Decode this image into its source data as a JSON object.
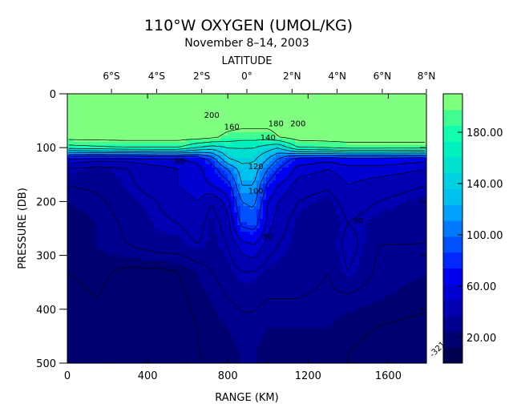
{
  "chart_data": {
    "type": "heatmap",
    "title": "110°W OXYGEN (UMOL/KG)",
    "subtitle": "November 8–14, 2003",
    "top_axis_label": "LATITUDE",
    "top_tick_labels": [
      "6°S",
      "4°S",
      "2°S",
      "0°",
      "2°N",
      "4°N",
      "6°N",
      "8°N"
    ],
    "top_tick_positions_km": [
      220,
      445,
      670,
      895,
      1120,
      1345,
      1570,
      1790
    ],
    "xlabel": "RANGE (KM)",
    "ylabel": "PRESSURE (DB)",
    "x_ticks": [
      0,
      400,
      800,
      1200,
      1600
    ],
    "y_ticks": [
      0,
      100,
      200,
      300,
      400,
      500
    ],
    "xlim": [
      0,
      1790
    ],
    "ylim": [
      500,
      0
    ],
    "colorbar": {
      "range": [
        0,
        210
      ],
      "tick_values": [
        20,
        60,
        100,
        140,
        180
      ],
      "tick_labels": [
        "20.00",
        "60.00",
        "100.00",
        "140.00",
        "180.00"
      ],
      "colors": [
        "#000050",
        "#000070",
        "#000090",
        "#0000b0",
        "#0000d0",
        "#0000f0",
        "#0028ff",
        "#0050ff",
        "#0078ff",
        "#00a0ff",
        "#00c0f0",
        "#00d0e0",
        "#00e0d0",
        "#00f0c0",
        "#10ffb0",
        "#40ff90",
        "#80ff80"
      ]
    },
    "contour_labels": [
      "200",
      "160",
      "180",
      "140",
      "120",
      "100",
      "60",
      "50",
      "30",
      "200"
    ],
    "corner_label": "-321",
    "value_grid": {
      "x_km": [
        0,
        150,
        300,
        450,
        550,
        650,
        720,
        800,
        870,
        930,
        1000,
        1050,
        1150,
        1300,
        1400,
        1550,
        1790
      ],
      "pressure_db": [
        0,
        50,
        80,
        100,
        120,
        140,
        170,
        200,
        240,
        280,
        330,
        380,
        430,
        480,
        500
      ],
      "values": [
        [
          210,
          210,
          210,
          210,
          210,
          210,
          210,
          210,
          210,
          210,
          210,
          210,
          210,
          210,
          210,
          210,
          210
        ],
        [
          210,
          210,
          210,
          210,
          210,
          210,
          210,
          210,
          210,
          210,
          210,
          210,
          210,
          210,
          210,
          210,
          210
        ],
        [
          210,
          210,
          210,
          210,
          210,
          210,
          205,
          195,
          190,
          190,
          190,
          200,
          210,
          210,
          210,
          210,
          210
        ],
        [
          170,
          175,
          180,
          180,
          180,
          160,
          150,
          160,
          160,
          160,
          150,
          140,
          180,
          185,
          190,
          190,
          190
        ],
        [
          60,
          55,
          55,
          60,
          60,
          65,
          90,
          140,
          150,
          145,
          120,
          100,
          70,
          65,
          70,
          70,
          65
        ],
        [
          40,
          35,
          40,
          45,
          50,
          55,
          70,
          100,
          130,
          130,
          100,
          80,
          55,
          50,
          55,
          55,
          50
        ],
        [
          30,
          32,
          38,
          45,
          50,
          55,
          60,
          70,
          120,
          120,
          75,
          60,
          45,
          42,
          50,
          45,
          40
        ],
        [
          25,
          28,
          35,
          40,
          45,
          50,
          40,
          55,
          100,
          105,
          60,
          50,
          40,
          35,
          45,
          40,
          35
        ],
        [
          20,
          25,
          32,
          38,
          40,
          45,
          35,
          45,
          85,
          90,
          55,
          45,
          35,
          30,
          40,
          35,
          30
        ],
        [
          20,
          25,
          30,
          35,
          35,
          40,
          35,
          40,
          55,
          60,
          45,
          40,
          35,
          30,
          45,
          30,
          30
        ],
        [
          20,
          22,
          18,
          18,
          20,
          25,
          30,
          35,
          40,
          40,
          35,
          35,
          35,
          30,
          40,
          28,
          25
        ],
        [
          18,
          20,
          15,
          15,
          18,
          22,
          25,
          30,
          32,
          32,
          30,
          30,
          30,
          28,
          28,
          25,
          22
        ],
        [
          15,
          18,
          15,
          15,
          18,
          20,
          22,
          25,
          28,
          28,
          25,
          25,
          25,
          25,
          22,
          20,
          18
        ],
        [
          15,
          18,
          15,
          15,
          18,
          20,
          20,
          22,
          25,
          25,
          22,
          22,
          22,
          22,
          20,
          18,
          16
        ],
        [
          15,
          18,
          15,
          15,
          18,
          20,
          20,
          22,
          25,
          25,
          22,
          22,
          22,
          22,
          20,
          18,
          16
        ]
      ]
    },
    "grid": false
  }
}
